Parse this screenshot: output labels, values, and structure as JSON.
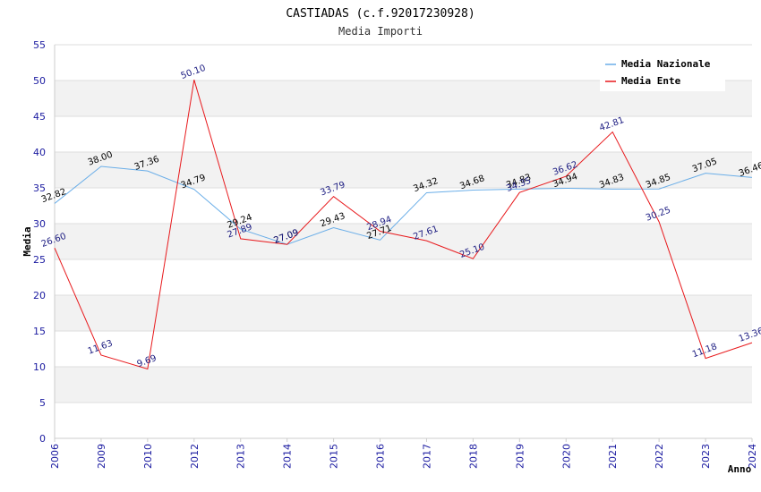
{
  "chart_data": {
    "type": "line",
    "title": "CASTIADAS (c.f.92017230928)",
    "subtitle": "Media Importi",
    "xlabel": "Anno",
    "ylabel": "Media",
    "ylim": [
      0,
      55
    ],
    "yticks": [
      0,
      5,
      10,
      15,
      20,
      25,
      30,
      35,
      40,
      45,
      50,
      55
    ],
    "categories": [
      "2006",
      "2009",
      "2010",
      "2012",
      "2013",
      "2014",
      "2015",
      "2016",
      "2017",
      "2018",
      "2019",
      "2020",
      "2021",
      "2022",
      "2023",
      "2024"
    ],
    "series": [
      {
        "name": "Media Nazionale",
        "color": "#6aaee8",
        "values": [
          32.82,
          38.0,
          37.36,
          34.79,
          29.24,
          27.09,
          29.43,
          27.71,
          34.32,
          34.68,
          34.83,
          34.94,
          34.83,
          34.85,
          37.05,
          36.46
        ],
        "labels": [
          "32.82",
          "38.00",
          "37.36",
          "34.79",
          "29.24",
          "27.09",
          "29.43",
          "27.71",
          "34.32",
          "34.68",
          "34.83",
          "34.94",
          "34.83",
          "34.85",
          "37.05",
          "36.46"
        ]
      },
      {
        "name": "Media Ente",
        "color": "#e8191c",
        "values": [
          26.6,
          11.63,
          9.69,
          50.1,
          27.89,
          27.09,
          33.79,
          28.94,
          27.61,
          25.1,
          34.35,
          36.62,
          42.81,
          30.25,
          11.18,
          13.36
        ],
        "labels": [
          "26.60",
          "11.63",
          "9.69",
          "50.10",
          "27.89",
          "27.09",
          "33.79",
          "28.94",
          "27.61",
          "25.10",
          "34.35",
          "36.62",
          "42.81",
          "30.25",
          "11.18",
          "13.36"
        ]
      }
    ],
    "legend_position": "top-right",
    "grid": true
  }
}
